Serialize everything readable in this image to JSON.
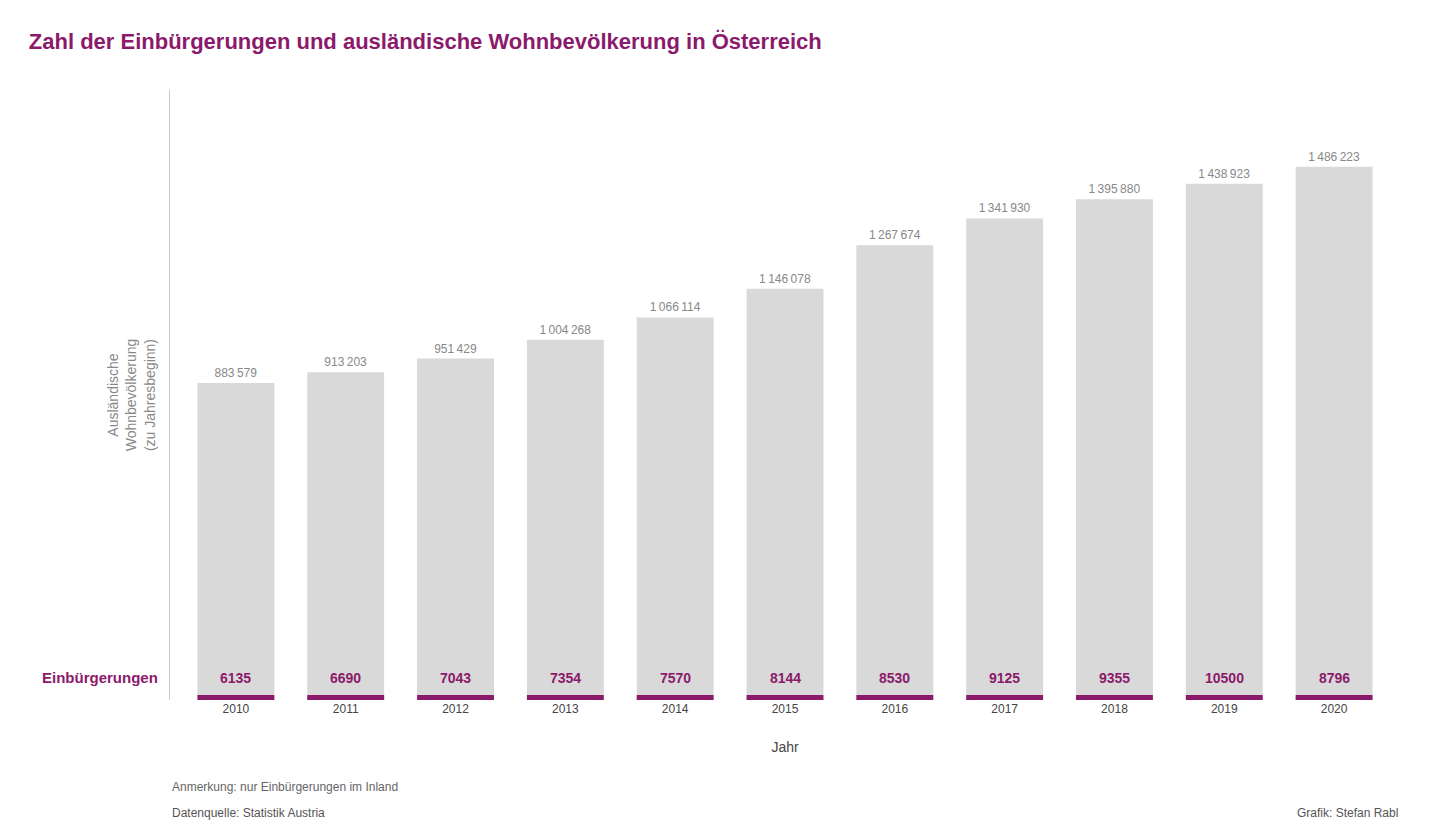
{
  "chart_data": {
    "type": "bar",
    "title": "Zahl der Einbürgerungen und ausländische Wohnbevölkerung in Österreich",
    "categories": [
      "2010",
      "2011",
      "2012",
      "2013",
      "2014",
      "2015",
      "2016",
      "2017",
      "2018",
      "2019",
      "2020"
    ],
    "series": [
      {
        "name": "Ausländische\nWohnbevölkerung\n(zu Jahresbeginn)",
        "type": "bar",
        "color": "#d9d9d9",
        "values": [
          883579,
          913203,
          951429,
          1004268,
          1066114,
          1146078,
          1267674,
          1341930,
          1395880,
          1438923,
          1486223
        ],
        "value_labels": [
          "883 579",
          "913 203",
          "951 429",
          "1 004 268",
          "1 066 114",
          "1 146 078",
          "1 267 674",
          "1 341 930",
          "1 395 880",
          "1 438 923",
          "1 486 223"
        ]
      },
      {
        "name": "Einbürgerungen",
        "type": "text",
        "color": "#8b1a6b",
        "values": [
          6135,
          6690,
          7043,
          7354,
          7570,
          8144,
          8530,
          9125,
          9355,
          10500,
          8796
        ]
      }
    ],
    "x_label": "Jahr",
    "note": "Anmerkung: nur Einbürgerungen im Inland",
    "source": "Datenquelle: Statistik Austria",
    "credit": "Grafik: Stefan Rabl",
    "ylim": [
      0,
      1700000
    ],
    "data_labels": true,
    "tick_labels": "x",
    "grid": false
  }
}
